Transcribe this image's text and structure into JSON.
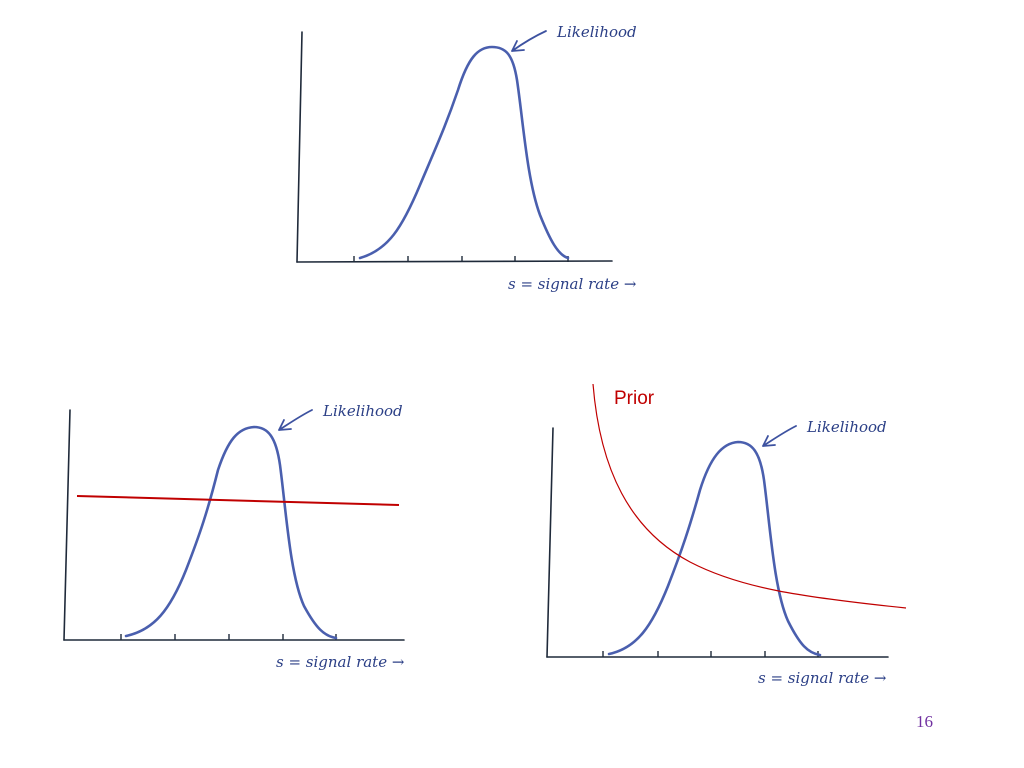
{
  "slide": {
    "page_number": "16"
  },
  "panels": [
    {
      "id": "top",
      "curve_label": "Likelihood",
      "x_axis_label": "s = signal rate →"
    },
    {
      "id": "bottom-left",
      "curve_label": "Likelihood",
      "x_axis_label": "s = signal rate →",
      "prior": "flat"
    },
    {
      "id": "bottom-right",
      "curve_label": "Likelihood",
      "x_axis_label": "s = signal rate →",
      "prior": "decaying",
      "prior_label": "Prior"
    }
  ],
  "colors": {
    "ink": "#4a5fae",
    "axis": "#1f2a3a",
    "prior": "#c00000",
    "page_number": "#7030a0"
  }
}
